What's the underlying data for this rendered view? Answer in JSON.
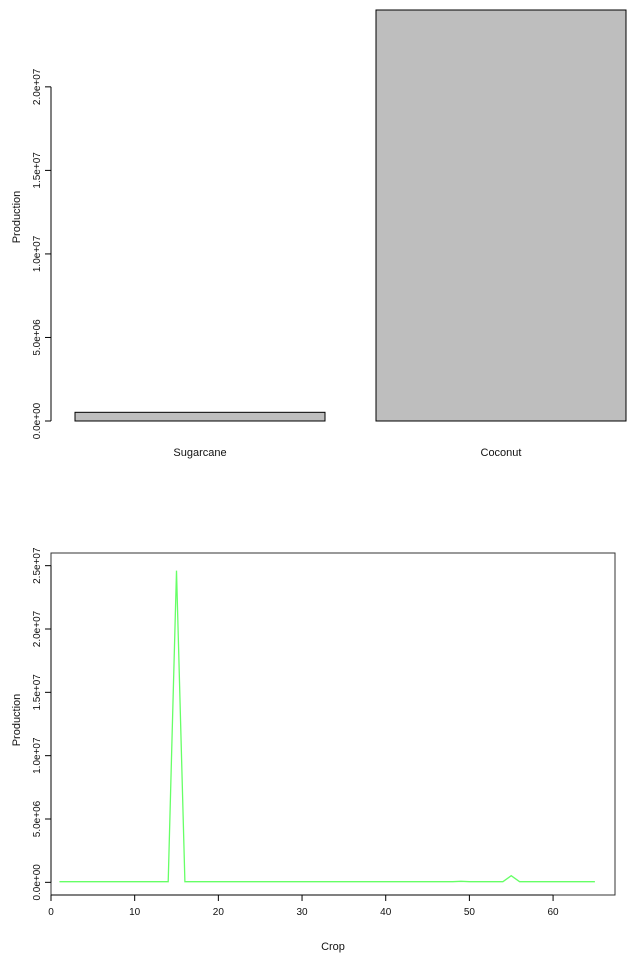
{
  "chart_data": [
    {
      "type": "bar",
      "categories": [
        "Sugarcane",
        "Coconut"
      ],
      "values": [
        520000,
        24600000
      ],
      "ylabel": "Production",
      "xlabel": "",
      "ylim": [
        0,
        24600000
      ],
      "yticks": [
        0,
        5000000,
        10000000,
        15000000,
        20000000
      ],
      "ytick_labels": [
        "0.0e+00",
        "5.0e+06",
        "1.0e+07",
        "1.5e+07",
        "2.0e+07"
      ],
      "colors": {
        "bar_fill": "#bebebe",
        "bar_stroke": "#000000"
      },
      "grid": false
    },
    {
      "type": "line",
      "xlabel": "Crop",
      "ylabel": "Production",
      "xlim": [
        0,
        67.4
      ],
      "ylim": [
        -1000000,
        26000000
      ],
      "xticks": [
        0,
        10,
        20,
        30,
        40,
        50,
        60
      ],
      "xtick_labels": [
        "0",
        "10",
        "20",
        "30",
        "40",
        "50",
        "60"
      ],
      "yticks": [
        0,
        5000000,
        10000000,
        15000000,
        20000000,
        25000000
      ],
      "ytick_labels": [
        "0.0e+00",
        "5.0e+06",
        "1.0e+07",
        "1.5e+07",
        "2.0e+07",
        "2.5e+07"
      ],
      "x": [
        1,
        2,
        3,
        4,
        5,
        6,
        7,
        8,
        9,
        10,
        11,
        12,
        13,
        14,
        15,
        16,
        17,
        18,
        19,
        20,
        21,
        22,
        23,
        24,
        25,
        26,
        27,
        28,
        29,
        30,
        31,
        32,
        33,
        34,
        35,
        36,
        37,
        38,
        39,
        40,
        41,
        42,
        43,
        44,
        45,
        46,
        47,
        48,
        49,
        50,
        51,
        52,
        53,
        54,
        55,
        56,
        57,
        58,
        59,
        60,
        61,
        62,
        63,
        64,
        65
      ],
      "series": [
        {
          "values": [
            50000,
            50000,
            50000,
            50000,
            50000,
            50000,
            50000,
            50000,
            50000,
            50000,
            50000,
            50000,
            50000,
            50000,
            24600000,
            50000,
            50000,
            50000,
            50000,
            50000,
            50000,
            50000,
            50000,
            50000,
            50000,
            50000,
            50000,
            50000,
            50000,
            50000,
            50000,
            50000,
            50000,
            50000,
            50000,
            50000,
            50000,
            50000,
            50000,
            50000,
            50000,
            50000,
            50000,
            50000,
            50000,
            50000,
            50000,
            50000,
            80000,
            50000,
            50000,
            50000,
            50000,
            50000,
            520000,
            50000,
            50000,
            50000,
            50000,
            60000,
            50000,
            50000,
            50000,
            50000,
            50000
          ],
          "color": "#66ff66"
        }
      ],
      "grid": false
    }
  ]
}
